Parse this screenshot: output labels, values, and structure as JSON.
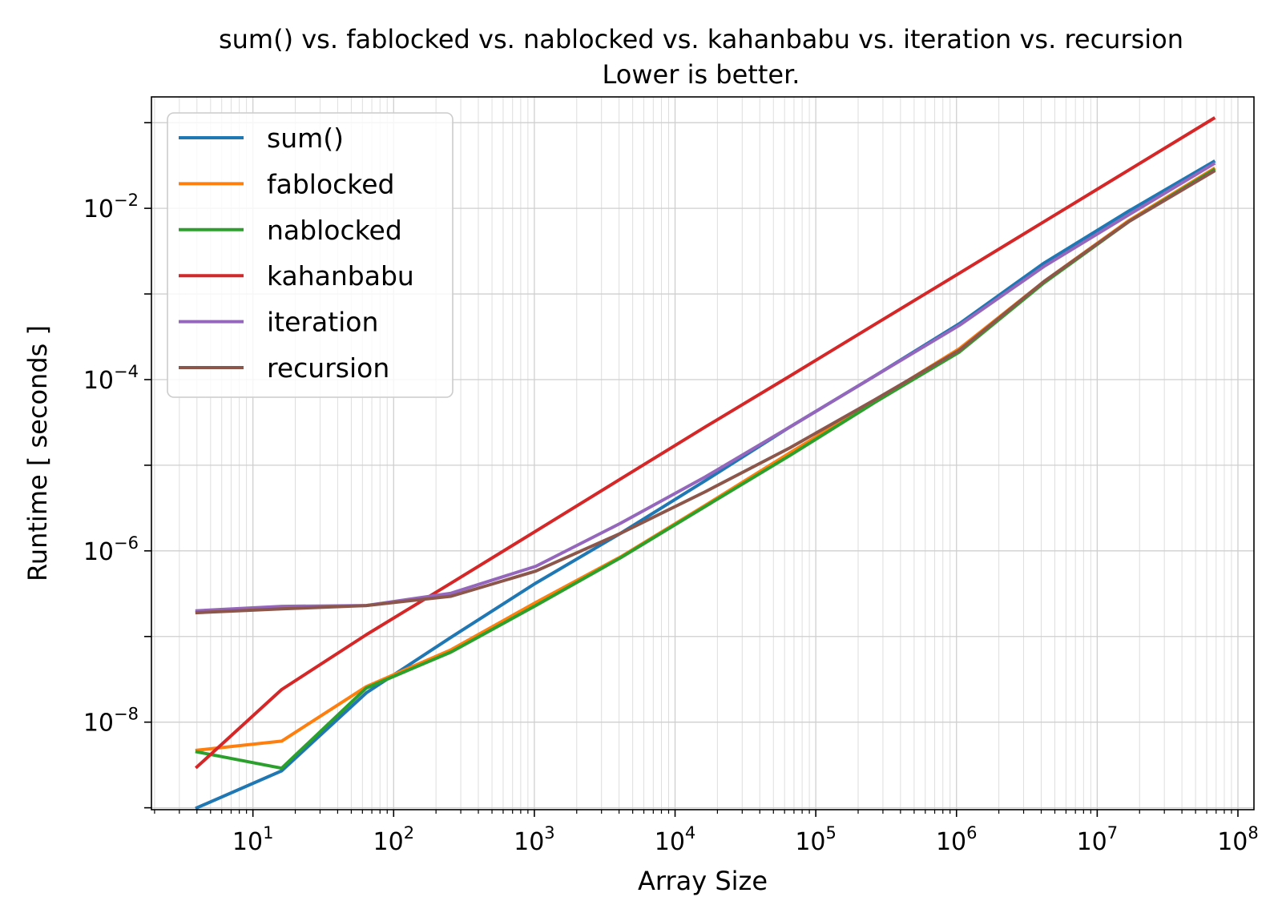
{
  "chart_data": {
    "type": "line",
    "title": "sum() vs. fablocked vs. nablocked vs. kahanbabu vs. iteration vs. recursion",
    "subtitle": "Lower is better.",
    "xlabel": "Array Size",
    "ylabel": "Runtime [ seconds ]",
    "xscale": "log",
    "yscale": "log",
    "xlim": [
      1.9,
      130000000
    ],
    "ylim": [
      9.5e-10,
      0.2
    ],
    "x_ticks": [
      {
        "value": 10,
        "mantissa": "10",
        "exp": "1"
      },
      {
        "value": 100,
        "mantissa": "10",
        "exp": "2"
      },
      {
        "value": 1000,
        "mantissa": "10",
        "exp": "3"
      },
      {
        "value": 10000,
        "mantissa": "10",
        "exp": "4"
      },
      {
        "value": 100000,
        "mantissa": "10",
        "exp": "5"
      },
      {
        "value": 1000000,
        "mantissa": "10",
        "exp": "6"
      },
      {
        "value": 10000000,
        "mantissa": "10",
        "exp": "7"
      },
      {
        "value": 100000000,
        "mantissa": "10",
        "exp": "8"
      }
    ],
    "y_ticks": [
      {
        "value": 1e-08,
        "mantissa": "10",
        "exp": "−8"
      },
      {
        "value": 1e-06,
        "mantissa": "10",
        "exp": "−6"
      },
      {
        "value": 0.0001,
        "mantissa": "10",
        "exp": "−4"
      },
      {
        "value": 0.01,
        "mantissa": "10",
        "exp": "−2"
      }
    ],
    "grid": "on (major and minor)",
    "legend_position": "top-left",
    "x": [
      4,
      16,
      64,
      256,
      1024,
      4096,
      16384,
      65536,
      262144,
      1048576,
      4194304,
      16777216,
      67108864
    ],
    "series": [
      {
        "name": "sum()",
        "color": "#1f77b4",
        "values": [
          1e-09,
          2.7e-09,
          2.2e-08,
          9.8e-08,
          4.2e-07,
          1.6e-06,
          6.6e-06,
          2.8e-05,
          0.00011,
          0.00045,
          0.0023,
          0.0093,
          0.035
        ]
      },
      {
        "name": "fablocked",
        "color": "#ff7f0e",
        "values": [
          4.7e-09,
          6e-09,
          2.6e-08,
          7e-08,
          2.5e-07,
          8.5e-07,
          3.4e-06,
          1.4e-05,
          5.6e-05,
          0.00023,
          0.0014,
          0.0072,
          0.029
        ]
      },
      {
        "name": "nablocked",
        "color": "#2ca02c",
        "values": [
          4.5e-09,
          2.9e-09,
          2.5e-08,
          6.6e-08,
          2.3e-07,
          8.3e-07,
          3.3e-06,
          1.3e-05,
          5.4e-05,
          0.00021,
          0.00135,
          0.007,
          0.028
        ]
      },
      {
        "name": "kahanbabu",
        "color": "#d62728",
        "values": [
          3e-09,
          2.4e-08,
          1.05e-07,
          4.2e-07,
          1.7e-06,
          6.9e-06,
          2.8e-05,
          0.00011,
          0.00044,
          0.00175,
          0.007,
          0.028,
          0.112
        ]
      },
      {
        "name": "iteration",
        "color": "#9467bd",
        "values": [
          2e-07,
          2.25e-07,
          2.3e-07,
          3.2e-07,
          6.6e-07,
          2.1e-06,
          7.3e-06,
          2.8e-05,
          0.00011,
          0.00043,
          0.0021,
          0.0084,
          0.033
        ]
      },
      {
        "name": "recursion",
        "color": "#8c564b",
        "values": [
          1.9e-07,
          2.1e-07,
          2.3e-07,
          2.95e-07,
          5.8e-07,
          1.6e-06,
          4.9e-06,
          1.6e-05,
          5.8e-05,
          0.00022,
          0.0014,
          0.007,
          0.027
        ]
      }
    ]
  }
}
